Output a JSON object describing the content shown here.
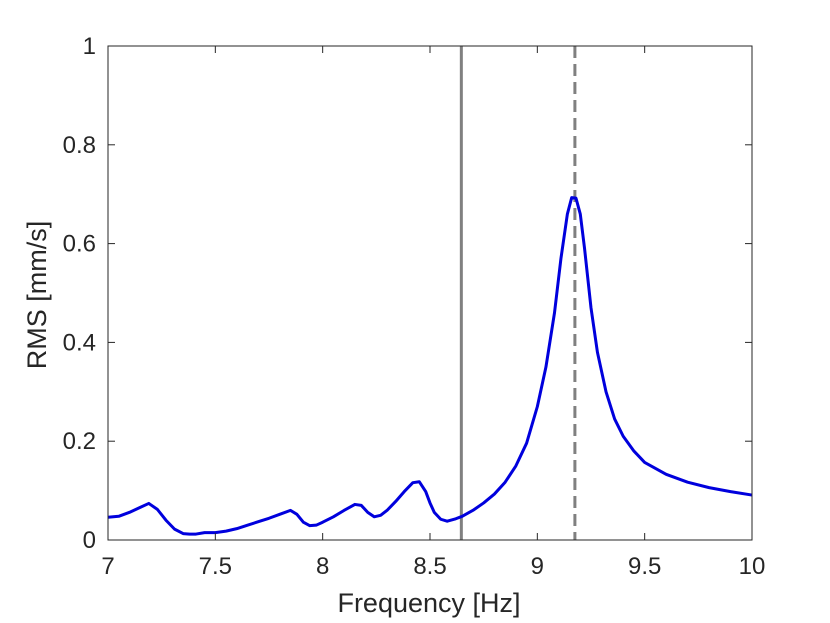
{
  "chart_data": {
    "type": "line",
    "title": "",
    "xlabel": "Frequency [Hz]",
    "ylabel": "RMS [mm/s]",
    "xlim": [
      7,
      10
    ],
    "ylim": [
      0,
      1
    ],
    "xticks": [
      7,
      7.5,
      8,
      8.5,
      9,
      9.5,
      10
    ],
    "xtick_labels": [
      "7",
      "7.5",
      "8",
      "8.5",
      "9",
      "9.5",
      "10"
    ],
    "yticks": [
      0,
      0.2,
      0.4,
      0.6,
      0.8,
      1
    ],
    "ytick_labels": [
      "0",
      "0.2",
      "0.4",
      "0.6",
      "0.8",
      "1"
    ],
    "grid": false,
    "legend": "none",
    "series": [
      {
        "color": "#0000dd",
        "x": [
          7.0,
          7.05,
          7.1,
          7.15,
          7.19,
          7.23,
          7.27,
          7.31,
          7.35,
          7.38,
          7.41,
          7.45,
          7.5,
          7.55,
          7.6,
          7.65,
          7.7,
          7.75,
          7.8,
          7.85,
          7.88,
          7.91,
          7.94,
          7.97,
          8.0,
          8.05,
          8.1,
          8.15,
          8.18,
          8.21,
          8.24,
          8.27,
          8.3,
          8.34,
          8.38,
          8.42,
          8.45,
          8.48,
          8.5,
          8.52,
          8.55,
          8.58,
          8.62,
          8.65,
          8.7,
          8.75,
          8.8,
          8.85,
          8.9,
          8.95,
          9.0,
          9.04,
          9.08,
          9.11,
          9.14,
          9.16,
          9.18,
          9.2,
          9.22,
          9.25,
          9.28,
          9.32,
          9.36,
          9.4,
          9.45,
          9.5,
          9.6,
          9.7,
          9.8,
          9.9,
          10.0
        ],
        "y": [
          0.046,
          0.048,
          0.056,
          0.066,
          0.074,
          0.062,
          0.04,
          0.022,
          0.013,
          0.012,
          0.012,
          0.015,
          0.015,
          0.018,
          0.023,
          0.03,
          0.037,
          0.044,
          0.052,
          0.06,
          0.052,
          0.036,
          0.029,
          0.03,
          0.036,
          0.047,
          0.06,
          0.072,
          0.07,
          0.056,
          0.047,
          0.05,
          0.06,
          0.078,
          0.098,
          0.116,
          0.118,
          0.098,
          0.075,
          0.056,
          0.042,
          0.038,
          0.043,
          0.048,
          0.06,
          0.075,
          0.093,
          0.117,
          0.15,
          0.196,
          0.27,
          0.35,
          0.46,
          0.57,
          0.66,
          0.693,
          0.692,
          0.66,
          0.59,
          0.47,
          0.38,
          0.3,
          0.245,
          0.21,
          0.18,
          0.157,
          0.133,
          0.117,
          0.106,
          0.098,
          0.091
        ]
      }
    ],
    "vlines": [
      {
        "x": 8.646,
        "style": "solid",
        "color": "#808080"
      },
      {
        "x": 9.175,
        "style": "dashed",
        "color": "#808080"
      }
    ]
  }
}
